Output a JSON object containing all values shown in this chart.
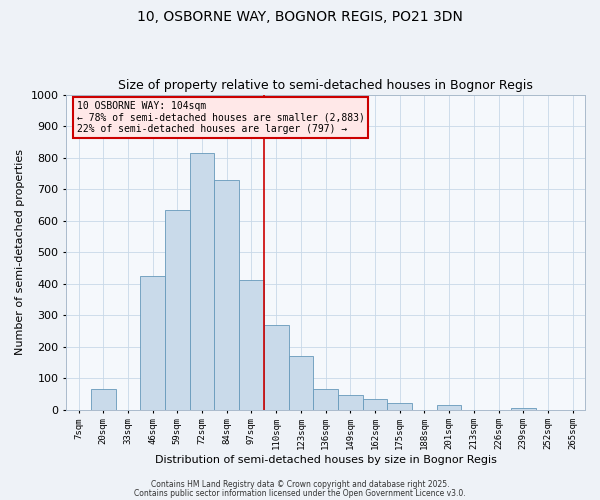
{
  "title": "10, OSBORNE WAY, BOGNOR REGIS, PO21 3DN",
  "subtitle": "Size of property relative to semi-detached houses in Bognor Regis",
  "xlabel": "Distribution of semi-detached houses by size in Bognor Regis",
  "ylabel": "Number of semi-detached properties",
  "bin_labels": [
    "7sqm",
    "20sqm",
    "33sqm",
    "46sqm",
    "59sqm",
    "72sqm",
    "84sqm",
    "97sqm",
    "110sqm",
    "123sqm",
    "136sqm",
    "149sqm",
    "162sqm",
    "175sqm",
    "188sqm",
    "201sqm",
    "213sqm",
    "226sqm",
    "239sqm",
    "252sqm",
    "265sqm"
  ],
  "bar_values": [
    0,
    65,
    0,
    425,
    635,
    815,
    730,
    410,
    270,
    170,
    65,
    45,
    35,
    20,
    0,
    15,
    0,
    0,
    5,
    0,
    0
  ],
  "bar_color": "#c9daea",
  "bar_edge_color": "#6699bb",
  "vline_color": "#cc0000",
  "ylim": [
    0,
    1000
  ],
  "yticks": [
    0,
    100,
    200,
    300,
    400,
    500,
    600,
    700,
    800,
    900,
    1000
  ],
  "annotation_title": "10 OSBORNE WAY: 104sqm",
  "annotation_line1": "← 78% of semi-detached houses are smaller (2,883)",
  "annotation_line2": "22% of semi-detached houses are larger (797) →",
  "annotation_box_facecolor": "#ffe8e8",
  "annotation_box_edgecolor": "#cc0000",
  "footer1": "Contains HM Land Registry data © Crown copyright and database right 2025.",
  "footer2": "Contains public sector information licensed under the Open Government Licence v3.0.",
  "bg_color": "#eef2f7",
  "plot_bg_color": "#f5f8fc",
  "grid_color": "#c8d8e8",
  "title_fontsize": 10,
  "subtitle_fontsize": 9
}
